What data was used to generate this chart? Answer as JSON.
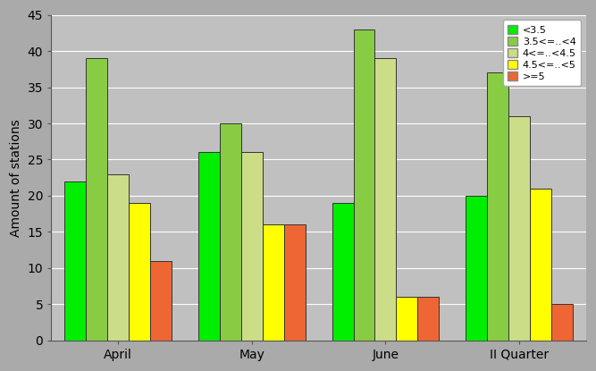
{
  "categories": [
    "April",
    "May",
    "June",
    "II Quarter"
  ],
  "series": [
    {
      "label": "<3.5",
      "color": "#00ee00",
      "values": [
        22,
        26,
        19,
        20
      ]
    },
    {
      "label": "3.5<=..<4",
      "color": "#88cc44",
      "values": [
        39,
        30,
        43,
        37
      ]
    },
    {
      "label": "4<=..<4.5",
      "color": "#ccdd88",
      "values": [
        23,
        26,
        39,
        31
      ]
    },
    {
      "label": "4.5<=..<5",
      "color": "#ffff00",
      "values": [
        19,
        16,
        6,
        21
      ]
    },
    {
      "label": ">=5",
      "color": "#ee6633",
      "values": [
        11,
        16,
        6,
        5
      ]
    }
  ],
  "ylabel": "Amount of stations",
  "ylim": [
    0,
    45
  ],
  "yticks": [
    0,
    5,
    10,
    15,
    20,
    25,
    30,
    35,
    40,
    45
  ],
  "background_color": "#aaaaaa",
  "plot_bg_color": "#c0c0c0",
  "bar_width": 0.16,
  "legend_fontsize": 8,
  "axis_label_fontsize": 10,
  "tick_fontsize": 10
}
